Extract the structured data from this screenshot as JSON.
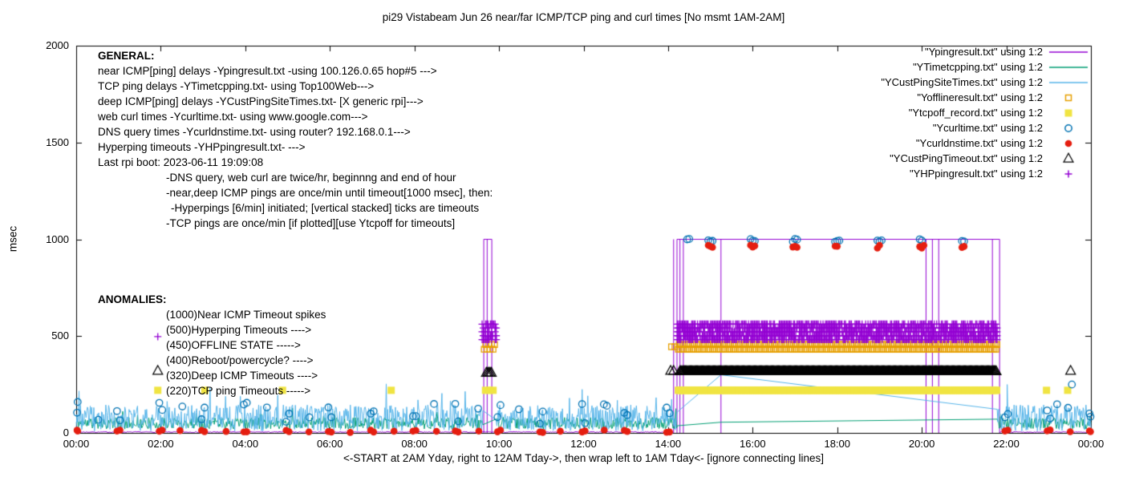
{
  "chart_data": {
    "type": "line",
    "title": "pi29 Vistabeam Jun 26  near/far ICMP/TCP ping and curl times [No msmt 1AM-2AM]",
    "xlabel": "<-START at 2AM Yday, right to 12AM Tday->, then wrap left to 1AM Tday<- [ignore connecting lines]",
    "ylabel": "msec",
    "ylim": [
      0,
      2000
    ],
    "yticks": [
      0,
      500,
      1000,
      1500,
      2000
    ],
    "x_hours_range": [
      0,
      24
    ],
    "xtick_labels": [
      "00:00",
      "02:00",
      "04:00",
      "06:00",
      "08:00",
      "10:00",
      "12:00",
      "14:00",
      "16:00",
      "18:00",
      "20:00",
      "22:00",
      "00:00"
    ],
    "grid": false,
    "legend_position": "top-right",
    "offline_windows_hours": [
      [
        9.63,
        9.93
      ],
      [
        14.22,
        21.78
      ]
    ],
    "series": [
      {
        "key": "near_icmp",
        "label": "\"Ypingresult.txt\" using 1:2",
        "color": "#9400D3",
        "style": "line",
        "timeout_level": 1000,
        "baseline_segments": [
          [
            0,
            14.05
          ],
          [
            21.84,
            24
          ]
        ],
        "top_segments": [
          [
            9.64,
            9.83
          ],
          [
            14.21,
            21.84
          ]
        ],
        "vlines": [
          9.64,
          9.72,
          9.83,
          14.13,
          14.21,
          14.28,
          14.36,
          15.25,
          20.1,
          20.25,
          20.4,
          21.67,
          21.84
        ]
      },
      {
        "key": "tcp_ping",
        "label": "\"YTimetcpping.txt\" using 1:2",
        "color": "#009E73",
        "style": "noisy-line",
        "base": 20,
        "amp": 60,
        "spike_p": 0.012,
        "spike_amp": 70,
        "seed": 11,
        "mid_points": [
          [
            15.25,
            55
          ]
        ]
      },
      {
        "key": "deep_icmp",
        "label": "\"YCustPingSiteTimes.txt\" using 1:2",
        "color": "#56B4E9",
        "style": "noisy-line",
        "base": 10,
        "amp": 135,
        "spike_p": 0.02,
        "spike_amp": 115,
        "seed": 23,
        "mid_points": [
          [
            15.25,
            300
          ],
          [
            22.02,
            250
          ]
        ]
      },
      {
        "key": "offline",
        "label": "\"Yofflineresult.txt\" using 1:2",
        "color": "#E69F00",
        "style": "marker",
        "marker": "open-square",
        "runs": [
          {
            "from": 9.65,
            "to": 9.93,
            "step": 0.07,
            "rows": [
              432,
              456
            ]
          },
          {
            "from": 14.24,
            "to": 21.78,
            "step": 0.045,
            "rows": [
              432,
              456
            ]
          }
        ],
        "points": [
          [
            14.08,
            445
          ],
          [
            14.16,
            445
          ]
        ]
      },
      {
        "key": "tcpoff",
        "label": "\"Ytcpoff_record.txt\" using 1:2",
        "color": "#F0E442",
        "style": "marker",
        "marker": "filled-square",
        "runs": [
          {
            "from": 9.68,
            "to": 9.9,
            "step": 0.09,
            "rows": [
              220
            ]
          },
          {
            "from": 14.24,
            "to": 21.78,
            "step": 0.03,
            "rows": [
              220
            ]
          }
        ],
        "points": [
          [
            3.04,
            220
          ],
          [
            4.88,
            220
          ],
          [
            7.45,
            220
          ],
          [
            22.95,
            220
          ],
          [
            23.45,
            220
          ]
        ]
      },
      {
        "key": "curl",
        "label": "\"Ycurltime.txt\" using 1:2",
        "color": "#0072B2",
        "style": "marker",
        "marker": "open-circle",
        "seed": 37,
        "sampling": {
          "baseline": {
            "lo": 45,
            "hi": 160
          },
          "offline_y": 995,
          "offline_hours": [
            14.5,
            15,
            16,
            17,
            18,
            19,
            20,
            21
          ]
        },
        "points": [
          [
            12.55,
            140
          ],
          [
            23.2,
            148
          ],
          [
            23.55,
            250
          ]
        ]
      },
      {
        "key": "dns",
        "label": "\"Ycurldnstime.txt\" using 1:2",
        "color": "#E51E10",
        "style": "marker",
        "marker": "filled-circle",
        "seed": 41,
        "sampling": {
          "baseline": {
            "lo": 2,
            "hi": 16
          },
          "offline_y": 962,
          "offline_hours": [
            15,
            16,
            17,
            18,
            19,
            20,
            21
          ]
        },
        "points": []
      },
      {
        "key": "deep_timeout",
        "label": "\"YCustPingTimeout.txt\" using 1:2",
        "color": "#000000",
        "style": "marker",
        "marker": "open-triangle",
        "runs": [
          {
            "from": 9.7,
            "to": 9.82,
            "step": 0.03,
            "rows": [
              310
            ]
          },
          {
            "from": 14.28,
            "to": 21.76,
            "step": 0.022,
            "rows": [
              318
            ]
          }
        ],
        "points": [
          [
            14.06,
            320
          ],
          [
            14.13,
            320
          ],
          [
            23.52,
            320
          ]
        ]
      },
      {
        "key": "hyperping",
        "label": "\"YHPpingresult.txt\" using 1:2",
        "color": "#9400D3",
        "style": "marker",
        "marker": "plus",
        "seed": 53,
        "runs": [
          {
            "from": 9.6,
            "to": 9.95,
            "step": 0.028,
            "band": [
              482,
              562
            ]
          },
          {
            "from": 14.22,
            "to": 21.78,
            "step": 0.028,
            "band": [
              482,
              562
            ]
          }
        ],
        "points": []
      }
    ]
  },
  "annotations": {
    "general": {
      "heading": "GENERAL:",
      "lines": [
        "near ICMP[ping] delays -Ypingresult.txt -using 100.126.0.65 hop#5 --->",
        "TCP ping delays -YTimetcpping.txt- using Top100Web--->",
        "deep ICMP[ping] delays -YCustPingSiteTimes.txt- [X generic rpi]--->",
        "web curl times -Ycurltime.txt- using www.google.com--->",
        "DNS query times -Ycurldnstime.txt- using router? 192.168.0.1--->",
        "Hyperping timeouts -YHPpingresult.txt- --->",
        "Last rpi boot: 2023-06-11 19:09:08",
        "-DNS query, web curl are twice/hr, beginnng and end of hour",
        "-near,deep ICMP pings are once/min until timeout[1000 msec], then:",
        "-Hyperpings [6/min] initiated; [vertical stacked] ticks are timeouts",
        "-TCP pings are once/min [if plotted][use Ytcpoff for timeouts]"
      ]
    },
    "anomalies": {
      "heading": "ANOMALIES:",
      "lines": [
        "(1000)Near ICMP Timeout spikes",
        "(500)Hyperping Timeouts ---->",
        "(450)OFFLINE STATE ----->",
        "(400)Reboot/powercycle? ---->",
        "(320)Deep ICMP Timeouts ---->",
        "(220)TCP ping Timeouts ----->"
      ],
      "sample_markers": [
        {
          "marker": "plus",
          "x_hour": 1.93,
          "y": 497,
          "color": "#9400D3"
        },
        {
          "marker": "open-triangle",
          "x_hour": 1.93,
          "y": 320,
          "color": "#000000"
        },
        {
          "marker": "filled-square",
          "x_hour": 1.93,
          "y": 220,
          "color": "#F0E442"
        }
      ]
    }
  }
}
